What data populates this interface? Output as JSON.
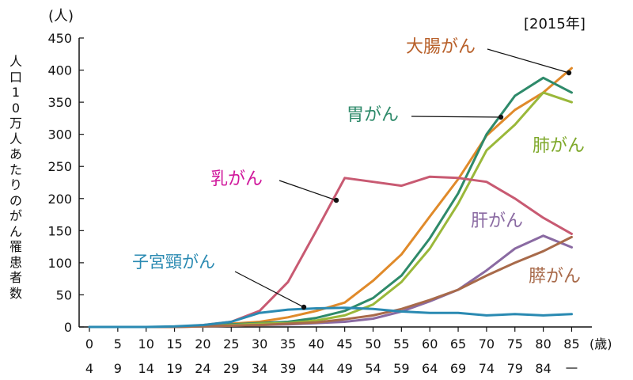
{
  "chart_data": {
    "type": "line",
    "title": "",
    "year_tag": "[2015年]",
    "y_unit": "(人)",
    "ylabel": "人口10万人あたりのがん罹患者数",
    "x_unit": "(歳)",
    "ylim": [
      0,
      450
    ],
    "yticks": [
      0,
      50,
      100,
      150,
      200,
      250,
      300,
      350,
      400,
      450
    ],
    "categories": [
      "0-4",
      "5-9",
      "10-14",
      "15-19",
      "20-24",
      "25-29",
      "30-34",
      "35-39",
      "40-44",
      "45-49",
      "50-54",
      "55-59",
      "60-64",
      "65-69",
      "70-74",
      "75-79",
      "80-84",
      "85-"
    ],
    "x_upper_labels": [
      "0",
      "5",
      "10",
      "15",
      "20",
      "25",
      "30",
      "35",
      "40",
      "45",
      "50",
      "55",
      "60",
      "65",
      "70",
      "75",
      "80",
      "85"
    ],
    "x_lower_labels": [
      "4",
      "9",
      "14",
      "19",
      "24",
      "29",
      "34",
      "39",
      "44",
      "49",
      "54",
      "59",
      "64",
      "69",
      "74",
      "79",
      "84",
      ""
    ],
    "grid": false,
    "legend": "direct labels",
    "series": [
      {
        "name": "大腸がん",
        "color": "#e08a2a",
        "label_color": "#b8602a",
        "values": [
          0,
          0,
          0,
          0,
          2,
          5,
          8,
          15,
          25,
          38,
          72,
          113,
          172,
          230,
          298,
          338,
          365,
          403
        ]
      },
      {
        "name": "胃がん",
        "color": "#2e8a6a",
        "label_color": "#2e8a6a",
        "values": [
          0,
          0,
          0,
          0,
          2,
          4,
          6,
          8,
          14,
          25,
          45,
          80,
          138,
          208,
          300,
          360,
          388,
          365
        ]
      },
      {
        "name": "肺がん",
        "color": "#9ab83a",
        "label_color": "#7ea82a",
        "values": [
          0,
          0,
          0,
          0,
          1,
          3,
          5,
          6,
          10,
          18,
          35,
          70,
          122,
          192,
          275,
          315,
          365,
          350
        ]
      },
      {
        "name": "乳がん",
        "color": "#c85a72",
        "label_color": "#d0189c",
        "values": [
          0,
          0,
          0,
          0,
          3,
          8,
          25,
          70,
          150,
          232,
          226,
          220,
          234,
          232,
          226,
          200,
          170,
          145
        ]
      },
      {
        "name": "肝がん",
        "color": "#8a6aa2",
        "label_color": "#8a6aa2",
        "values": [
          0,
          0,
          0,
          0,
          1,
          2,
          3,
          4,
          6,
          8,
          13,
          24,
          40,
          58,
          88,
          122,
          142,
          124
        ]
      },
      {
        "name": "膵がん",
        "color": "#a86a4a",
        "label_color": "#a86a4a",
        "values": [
          0,
          0,
          0,
          0,
          1,
          2,
          3,
          5,
          7,
          12,
          18,
          28,
          42,
          58,
          80,
          100,
          118,
          140
        ]
      },
      {
        "name": "子宮頸がん",
        "color": "#2a8ab2",
        "label_color": "#2a8ab2",
        "values": [
          0,
          0,
          0,
          1,
          3,
          8,
          22,
          27,
          29,
          30,
          28,
          24,
          22,
          22,
          18,
          20,
          18,
          20
        ]
      }
    ]
  }
}
